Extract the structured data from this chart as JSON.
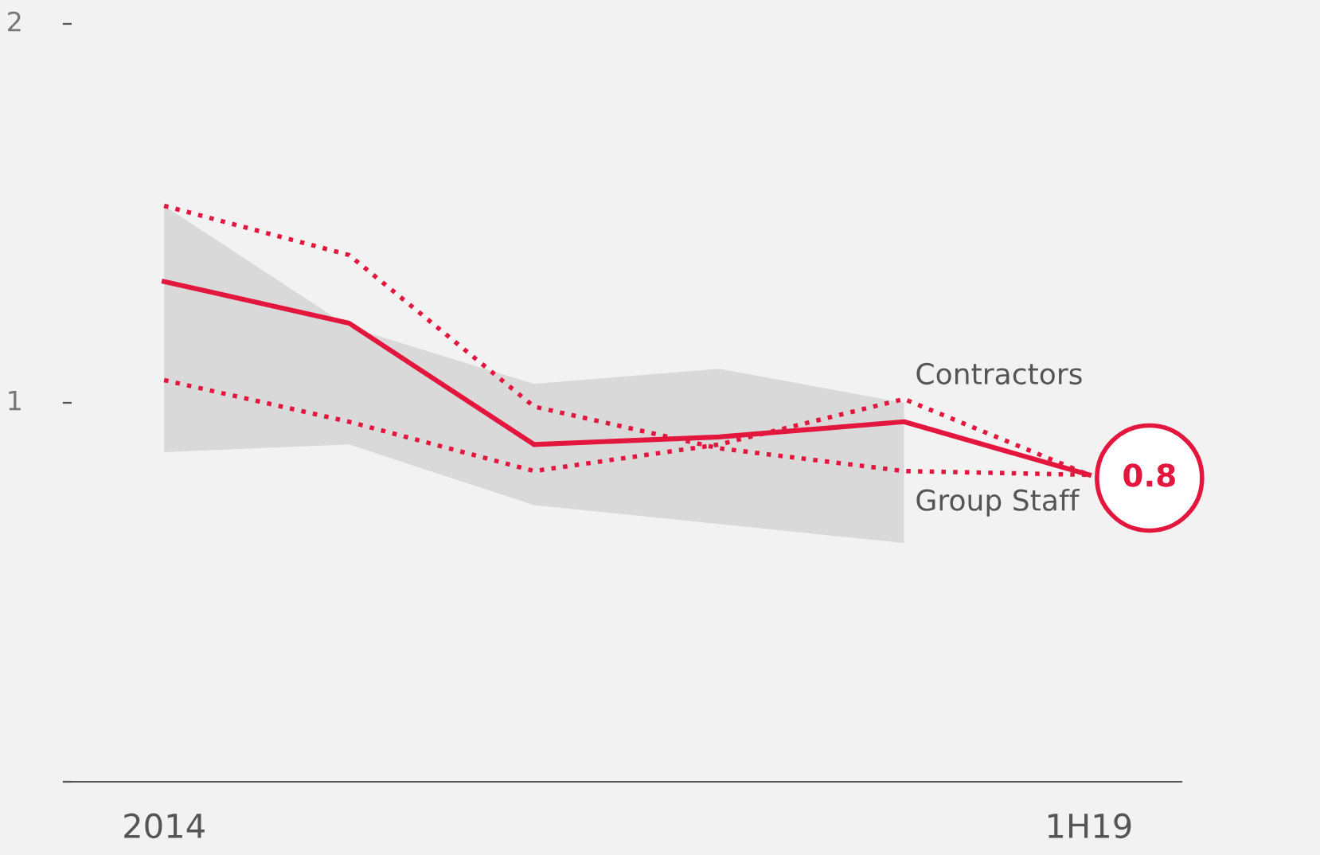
{
  "chart_data": {
    "type": "line",
    "categories": [
      "2014",
      null,
      null,
      null,
      null,
      "1H19"
    ],
    "ylim": [
      0,
      2
    ],
    "yticks": [
      {
        "value": 0,
        "label": null
      },
      1,
      2
    ],
    "grid": false,
    "legend": false,
    "series": [
      {
        "color": "#e3173e",
        "line_style": "solid",
        "values": [
          1.32,
          1.21,
          0.89,
          0.91,
          0.95,
          0.81
        ],
        "lower": [
          0.87,
          0.89,
          0.73,
          0.68,
          0.63,
          null
        ],
        "upper": [
          1.52,
          1.2,
          1.05,
          1.09,
          1.0,
          null
        ],
        "value_labels": [
          null,
          null,
          null,
          null,
          null,
          "0.8"
        ]
      },
      {
        "name": "Contractors",
        "color": "#e3173e",
        "line_style": "dotted",
        "values": [
          1.06,
          0.95,
          0.82,
          0.89,
          1.01,
          0.81
        ]
      },
      {
        "name": "Group Staff",
        "color": "#e3173e",
        "line_style": "dotted",
        "values": [
          1.52,
          1.39,
          0.99,
          0.88,
          0.82,
          0.81
        ]
      }
    ]
  }
}
